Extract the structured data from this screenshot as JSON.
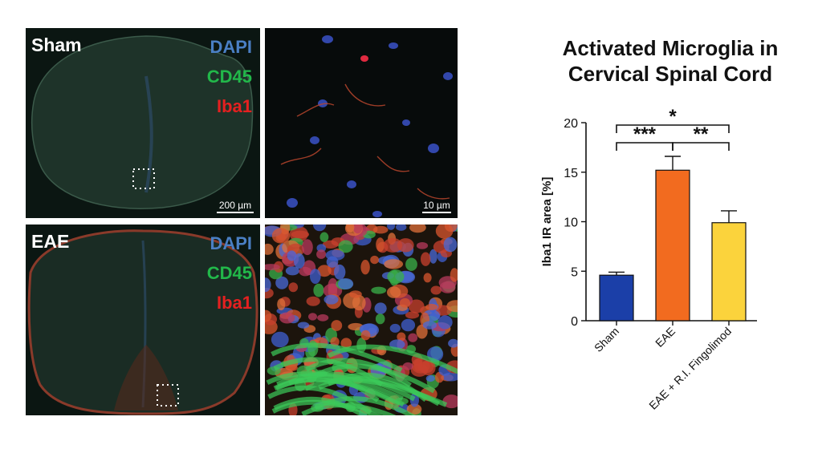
{
  "figure": {
    "sham": {
      "label": "Sham",
      "stains": [
        "DAPI",
        "CD45",
        "Iba1"
      ],
      "scale_overview": "200 µm",
      "scale_zoom": "10 µm"
    },
    "eae": {
      "label": "EAE",
      "stains": [
        "DAPI",
        "CD45",
        "Iba1"
      ]
    },
    "colors": {
      "dapi": "#4a7fc4",
      "cd45": "#22b84a",
      "iba1": "#e42020"
    }
  },
  "chart_data": {
    "type": "bar",
    "title_lines": [
      "Activated Microglia in",
      "Cervical Spinal Cord"
    ],
    "categories": [
      "Sham",
      "EAE",
      "EAE + R.I. Fingolimod"
    ],
    "values": [
      4.6,
      15.2,
      9.9
    ],
    "errors": [
      0.3,
      1.4,
      1.2
    ],
    "colors": [
      "#1b3fa8",
      "#f26b1f",
      "#fbd33c"
    ],
    "ylabel": "Iba1 IR area [%]",
    "xlabel": "",
    "ylim": [
      0,
      20
    ],
    "yticks": [
      0,
      5,
      10,
      15,
      20
    ],
    "significance": [
      {
        "from": 0,
        "to": 1,
        "label": "***"
      },
      {
        "from": 1,
        "to": 2,
        "label": "**"
      },
      {
        "from": 0,
        "to": 2,
        "label": "*"
      }
    ],
    "grid": false
  }
}
